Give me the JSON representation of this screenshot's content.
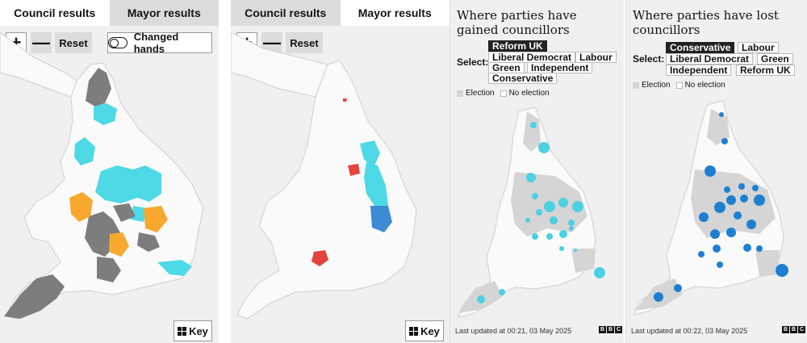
{
  "panels": {
    "council": {
      "tabs": [
        "Council results",
        "Mayor results"
      ],
      "active_tab": 0,
      "zoom_in": "+",
      "zoom_out": "—",
      "reset": "Reset",
      "changed_hands": "Changed hands",
      "key": "Key"
    },
    "mayor": {
      "tabs": [
        "Council results",
        "Mayor results"
      ],
      "active_tab": 1,
      "zoom_in": "+",
      "zoom_out": "—",
      "reset": "Reset",
      "key": "Key"
    },
    "gained": {
      "title": "Where parties have gained councillors",
      "select_label": "Select:",
      "options": [
        "Reform UK",
        "Liberal Democrat",
        "Labour",
        "Green",
        "Independent",
        "Conservative"
      ],
      "selected": "Reform UK",
      "legend_election": "Election",
      "legend_no_election": "No election",
      "footer": "Last updated at 00:21, 03 May 2025",
      "bubble_color": "#4dd0e1"
    },
    "lost": {
      "title": "Where parties have lost councillors",
      "select_label": "Select:",
      "options": [
        "Conservative",
        "Labour",
        "Liberal Democrat",
        "Green",
        "Independent",
        "Reform UK"
      ],
      "selected": "Conservative",
      "legend_election": "Election",
      "legend_no_election": "No election",
      "footer": "Last updated at 00:22, 03 May 2025",
      "bubble_color": "#1e7fd1"
    }
  },
  "brand": [
    "B",
    "B",
    "C"
  ],
  "colors": {
    "reform": "#4dd9e6",
    "lib_dem": "#f8a82e",
    "no_overall": "#7d7d7d",
    "labour": "#e4443b",
    "conservative_mayor": "#3d8bd4",
    "election_area": "#d5d5d5",
    "land": "#fafafa"
  }
}
